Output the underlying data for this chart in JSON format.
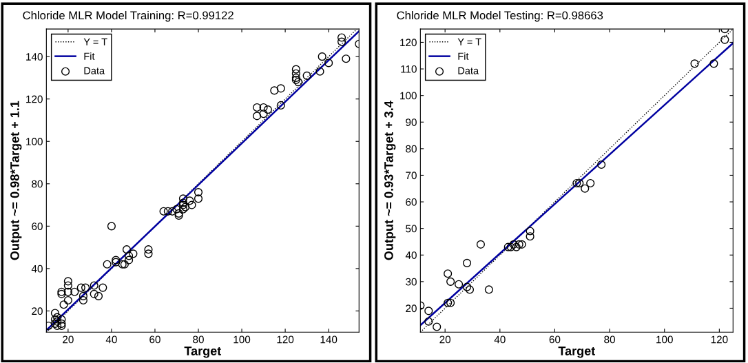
{
  "chart_data": [
    {
      "type": "scatter",
      "title": "Chloride MLR Model Training: R=0.99122",
      "xlabel": "Target",
      "ylabel": "Output ~= 0.98*Target + 1.1",
      "xlim": [
        10,
        154
      ],
      "ylim": [
        10,
        153
      ],
      "xticks": [
        20,
        40,
        60,
        80,
        100,
        120,
        140
      ],
      "yticks": [
        20,
        40,
        60,
        80,
        100,
        120,
        140
      ],
      "legend": "top left",
      "grid": false,
      "series": [
        {
          "name": "Y = T",
          "type": "line",
          "line_style": "dotted",
          "marker": "none",
          "color": "#000000",
          "x": [
            10,
            153
          ],
          "values": [
            10,
            153
          ]
        },
        {
          "name": "Fit",
          "type": "line",
          "line_style": "solid",
          "marker": "none",
          "color": "#0000a0",
          "x": [
            10,
            154
          ],
          "values": [
            10.9,
            152.0
          ]
        },
        {
          "name": "Data",
          "type": "scatter",
          "marker": "circle",
          "color": "#000000",
          "x": [
            11,
            14,
            14,
            14,
            15,
            15,
            15,
            17,
            17,
            17,
            17,
            17,
            18,
            20,
            20,
            20,
            20,
            23,
            26,
            27,
            27,
            28,
            32,
            32,
            34,
            36,
            38,
            40,
            42,
            42,
            45,
            46,
            47,
            48,
            48,
            50,
            57,
            57,
            64,
            66,
            68,
            70,
            71,
            71,
            73,
            73,
            73,
            74,
            73,
            76,
            77,
            80,
            80,
            107,
            107,
            110,
            110,
            112,
            115,
            118,
            118,
            125,
            125,
            125,
            125,
            126,
            130,
            136,
            137,
            140,
            146,
            146,
            148,
            154
          ],
          "values": [
            13,
            14,
            16,
            19,
            13,
            15,
            17,
            14,
            16,
            13,
            28,
            29,
            23,
            25,
            29,
            32,
            34,
            29,
            31,
            27,
            25,
            31,
            32,
            28,
            27,
            31,
            42,
            60,
            44,
            43,
            42,
            42,
            49,
            44,
            46,
            47,
            49,
            47,
            67,
            67,
            67,
            68,
            66,
            65,
            73,
            71,
            70,
            69,
            68,
            72,
            70,
            76,
            73,
            116,
            112,
            116,
            113,
            115,
            124,
            125,
            117,
            134,
            132,
            130,
            129,
            128,
            131,
            133,
            140,
            137,
            149,
            147,
            139,
            146
          ]
        }
      ]
    },
    {
      "type": "scatter",
      "title": "Chloride MLR Model Testing: R=0.98663",
      "xlabel": "Target",
      "ylabel": "Output ~= 0.93*Target + 3.4",
      "xlim": [
        11,
        125
      ],
      "ylim": [
        11,
        125
      ],
      "xticks": [
        20,
        40,
        60,
        80,
        100,
        120
      ],
      "yticks": [
        20,
        30,
        40,
        50,
        60,
        70,
        80,
        90,
        100,
        110,
        120
      ],
      "legend": "top left",
      "grid": false,
      "series": [
        {
          "name": "Y = T",
          "type": "line",
          "line_style": "dotted",
          "marker": "none",
          "color": "#000000",
          "x": [
            11,
            125
          ],
          "values": [
            11,
            125
          ]
        },
        {
          "name": "Fit",
          "type": "line",
          "line_style": "solid",
          "marker": "none",
          "color": "#0000a0",
          "x": [
            11,
            125
          ],
          "values": [
            13.6,
            119.7
          ]
        },
        {
          "name": "Data",
          "type": "scatter",
          "marker": "circle",
          "color": "#000000",
          "x": [
            11,
            14,
            14,
            17,
            21,
            21,
            22,
            22,
            25,
            28,
            28,
            29,
            33,
            36,
            43,
            44,
            45,
            46,
            47,
            48,
            51,
            51,
            68,
            69,
            71,
            73,
            77,
            111,
            118,
            122,
            122
          ],
          "values": [
            21,
            19,
            15,
            13,
            33,
            22,
            30,
            22,
            29,
            37,
            28,
            27,
            44,
            27,
            43,
            43,
            44,
            43,
            44,
            44,
            49,
            47,
            67,
            67,
            65,
            67,
            74,
            112,
            112,
            121,
            125
          ]
        }
      ]
    }
  ]
}
